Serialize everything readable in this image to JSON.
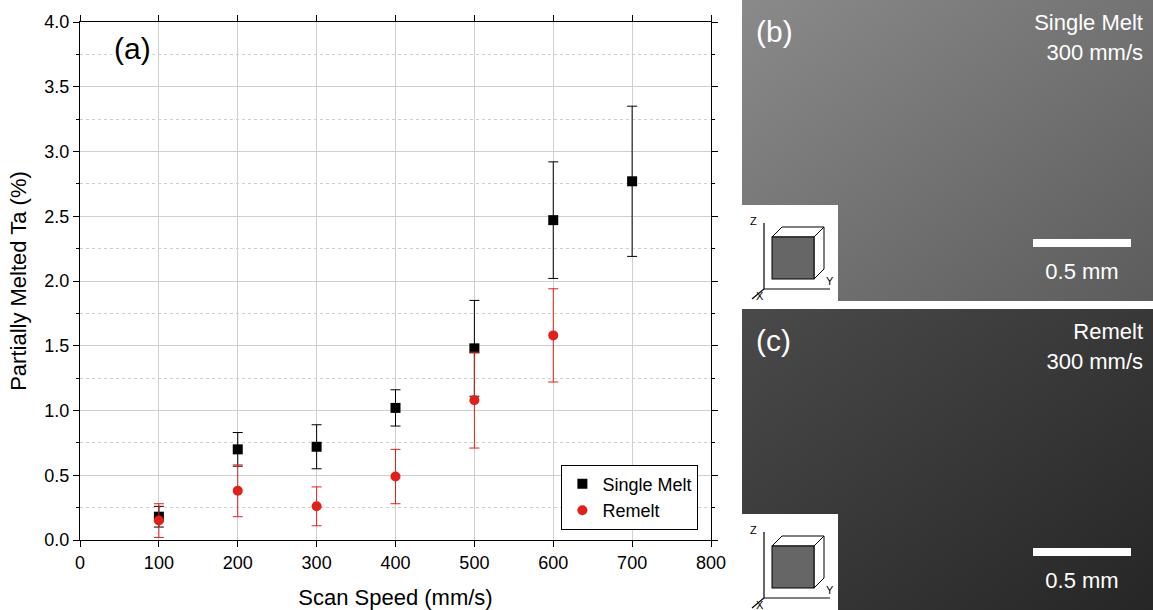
{
  "chart_data": {
    "type": "scatter",
    "x_label": "Scan Speed (mm/s)",
    "y_label": "Partially Melted Ta (%)",
    "annotations": [
      {
        "text": "(a)"
      }
    ],
    "xlim": [
      0,
      800
    ],
    "xticks": [
      0,
      100,
      200,
      300,
      400,
      500,
      600,
      700,
      800
    ],
    "ylim": [
      0,
      4
    ],
    "yticks": [
      {
        "value": 0,
        "label": "0.0"
      },
      0.5,
      {
        "value": 1,
        "label": "1.0"
      },
      1.5,
      {
        "value": 2,
        "label": "2.0"
      },
      2.5,
      {
        "value": 3,
        "label": "3.0"
      },
      3.5,
      {
        "value": 4,
        "label": "4.0"
      }
    ],
    "grid": true,
    "legend": "bottom right",
    "series": [
      {
        "name": "Single Melt",
        "color": "#000000",
        "marker": "square",
        "x": [
          100,
          200,
          300,
          400,
          500,
          600,
          700
        ],
        "values": [
          0.18,
          0.7,
          0.72,
          1.02,
          1.48,
          2.47,
          2.77
        ],
        "error": [
          0.08,
          0.13,
          0.17,
          0.14,
          0.37,
          0.45,
          0.58
        ]
      },
      {
        "name": "Remelt",
        "color": "#e0201b",
        "marker": "circle",
        "x": [
          100,
          200,
          300,
          400,
          500,
          600
        ],
        "values": [
          0.15,
          0.38,
          0.26,
          0.49,
          1.08,
          1.58
        ],
        "error": [
          0.13,
          0.2,
          0.15,
          0.21,
          0.37,
          0.36
        ]
      }
    ]
  },
  "images": [
    {
      "label": "(b)",
      "title": "Single Melt",
      "subtitle": "300 mm/s",
      "scale_bar": "0.5 mm",
      "axes": [
        "Z",
        "X",
        "Y"
      ]
    },
    {
      "label": "(c)",
      "title": "Remelt",
      "subtitle": "300 mm/s",
      "scale_bar": "0.5 mm",
      "axes": [
        "Z",
        "X",
        "Y"
      ]
    }
  ]
}
